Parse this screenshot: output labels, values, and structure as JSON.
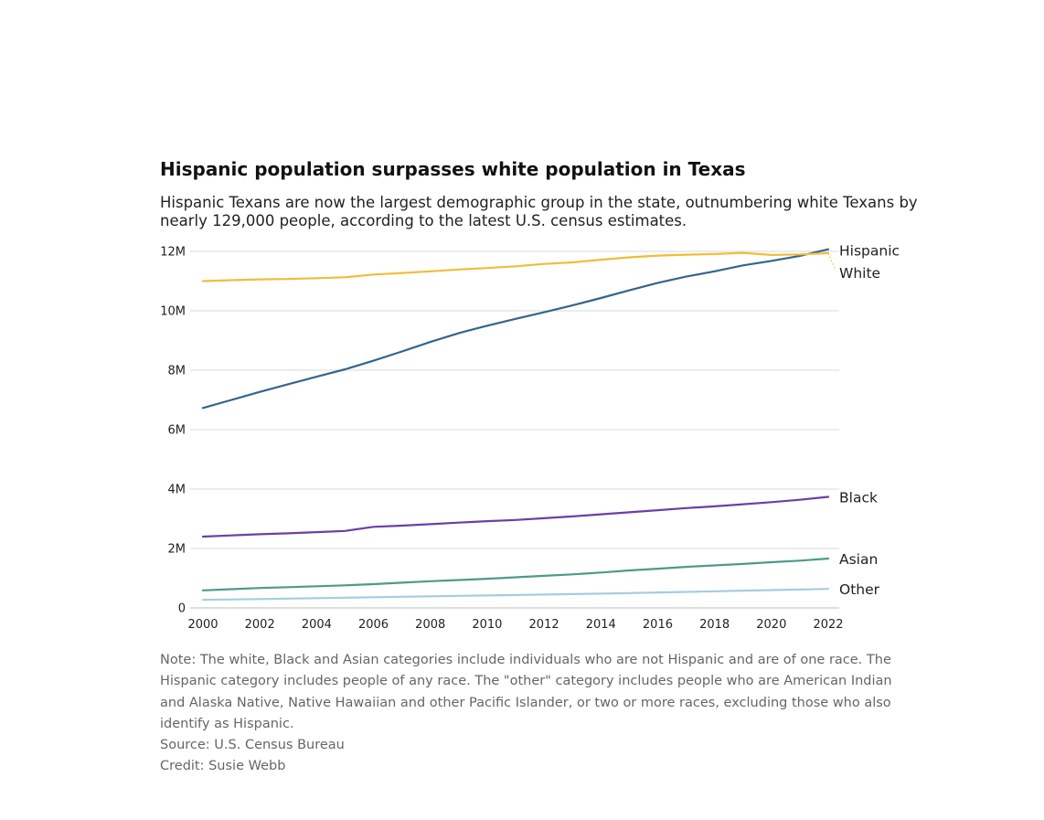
{
  "chart_data": {
    "type": "line",
    "title": "Hispanic population surpasses white population in Texas",
    "subtitle": "Hispanic Texans are now the largest demographic group in the state, outnumbering white Texans by nearly 129,000 people, according to the latest U.S. census estimates.",
    "xlabel": "",
    "ylabel": "",
    "x": [
      2000,
      2001,
      2002,
      2003,
      2004,
      2005,
      2006,
      2007,
      2008,
      2009,
      2010,
      2011,
      2012,
      2013,
      2014,
      2015,
      2016,
      2017,
      2018,
      2019,
      2020,
      2021,
      2022
    ],
    "xlim": [
      2000,
      2022
    ],
    "ylim": [
      0,
      12000000
    ],
    "x_ticks": [
      2000,
      2002,
      2004,
      2006,
      2008,
      2010,
      2012,
      2014,
      2016,
      2018,
      2020,
      2022
    ],
    "x_tick_labels": [
      "2000",
      "2002",
      "2004",
      "2006",
      "2008",
      "2010",
      "2012",
      "2014",
      "2016",
      "2018",
      "2020",
      "2022"
    ],
    "y_ticks": [
      0,
      2000000,
      4000000,
      6000000,
      8000000,
      10000000,
      12000000
    ],
    "y_tick_labels": [
      "0",
      "2M",
      "4M",
      "6M",
      "8M",
      "10M",
      "12M"
    ],
    "grid": "horizontal",
    "legend": "direct labels at right end of lines",
    "series": [
      {
        "name": "Hispanic",
        "color": "#33668a",
        "values": [
          6730000,
          7000000,
          7270000,
          7530000,
          7780000,
          8030000,
          8320000,
          8630000,
          8950000,
          9250000,
          9500000,
          9730000,
          9950000,
          10180000,
          10430000,
          10690000,
          10940000,
          11150000,
          11330000,
          11530000,
          11680000,
          11850000,
          12070000
        ]
      },
      {
        "name": "White",
        "color": "#f1bd38",
        "values": [
          11000000,
          11030000,
          11060000,
          11070000,
          11100000,
          11130000,
          11220000,
          11270000,
          11330000,
          11390000,
          11440000,
          11500000,
          11580000,
          11630000,
          11720000,
          11800000,
          11860000,
          11890000,
          11910000,
          11950000,
          11880000,
          11900000,
          11940000
        ]
      },
      {
        "name": "Black",
        "color": "#6a3fa8",
        "values": [
          2400000,
          2440000,
          2480000,
          2510000,
          2550000,
          2590000,
          2730000,
          2770000,
          2820000,
          2870000,
          2920000,
          2960000,
          3020000,
          3080000,
          3150000,
          3220000,
          3290000,
          3360000,
          3420000,
          3490000,
          3560000,
          3640000,
          3740000
        ]
      },
      {
        "name": "Asian",
        "color": "#4d9a8a",
        "values": [
          590000,
          630000,
          670000,
          700000,
          730000,
          760000,
          800000,
          850000,
          900000,
          940000,
          980000,
          1030000,
          1080000,
          1130000,
          1190000,
          1260000,
          1320000,
          1380000,
          1430000,
          1480000,
          1540000,
          1590000,
          1660000
        ]
      },
      {
        "name": "Other",
        "color": "#a4cde1",
        "values": [
          270000,
          285000,
          300000,
          315000,
          330000,
          345000,
          360000,
          375000,
          390000,
          405000,
          420000,
          435000,
          450000,
          465000,
          480000,
          500000,
          520000,
          540000,
          560000,
          580000,
          600000,
          620000,
          640000
        ]
      }
    ]
  },
  "notes": {
    "note": "Note: The white, Black and Asian categories include individuals who are not Hispanic and are of one race. The Hispanic category includes people of any race. The \"other\" category includes people who are American Indian and Alaska Native, Native Hawaiian and other Pacific Islander, or two or more races, excluding those who also identify as Hispanic.",
    "source": "Source: U.S. Census Bureau",
    "credit": "Credit: Susie Webb"
  }
}
